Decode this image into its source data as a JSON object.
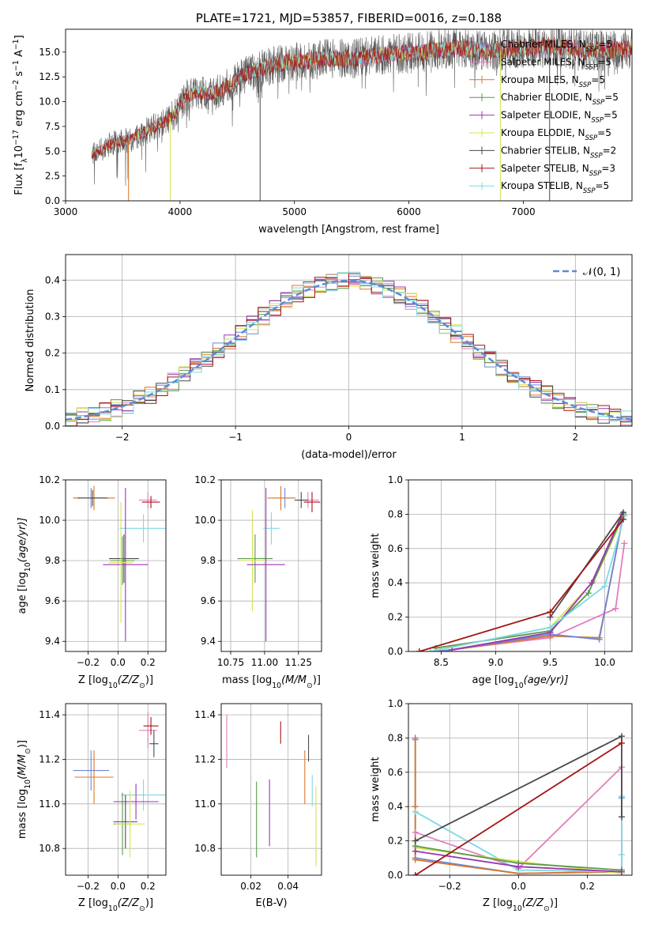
{
  "chart_data": [
    {
      "id": "spectrum",
      "type": "line",
      "title": "PLATE=1721, MJD=53857, FIBERID=0016, z=0.188",
      "xlabel": "wavelength [Angstrom, rest frame]",
      "ylabel_parts": [
        "Flux [f",
        "λ",
        "10",
        "−17",
        " erg cm",
        "−2",
        " s",
        "−1",
        " A",
        "−1",
        "]"
      ],
      "xlim": [
        3000,
        7950
      ],
      "ylim": [
        0,
        17.3
      ],
      "xticks": [
        3000,
        4000,
        5000,
        6000,
        7000
      ],
      "yticks": [
        0.0,
        2.5,
        5.0,
        7.5,
        10.0,
        12.5,
        15.0
      ],
      "grid": false,
      "legend_position": "right",
      "data_range_x": [
        3230,
        7950
      ],
      "legend": [
        {
          "main": "Chabrier MILES, N",
          "sub": "SSP",
          "tail": "=5",
          "color": "#6f86d6"
        },
        {
          "main": "Salpeter MILES, N",
          "sub": "SSP",
          "tail": "=5",
          "color": "#e17fbd"
        },
        {
          "main": "Kroupa MILES, N",
          "sub": "SSP",
          "tail": "=5",
          "color": "#d9772a"
        },
        {
          "main": "Chabrier ELODIE, N",
          "sub": "SSP",
          "tail": "=5",
          "color": "#5a9a4a"
        },
        {
          "main": "Salpeter ELODIE, N",
          "sub": "SSP",
          "tail": "=5",
          "color": "#9b34b5"
        },
        {
          "main": "Kroupa ELODIE, N",
          "sub": "SSP",
          "tail": "=5",
          "color": "#d7e354"
        },
        {
          "main": "Chabrier STELIB, N",
          "sub": "SSP",
          "tail": "=2",
          "color": "#4a4a4a"
        },
        {
          "main": "Salpeter STELIB, N",
          "sub": "SSP",
          "tail": "=3",
          "color": "#a31515"
        },
        {
          "main": "Kroupa STELIB, N",
          "sub": "SSP",
          "tail": "=5",
          "color": "#7fd9e3"
        }
      ],
      "continuum": {
        "x": [
          3230,
          3400,
          3550,
          3700,
          3850,
          3950,
          4050,
          4150,
          4300,
          4450,
          4550,
          4700,
          4900,
          5100,
          5300,
          5500,
          5700,
          5900,
          6100,
          6300,
          6500,
          6700,
          6900,
          7100,
          7300,
          7500,
          7700,
          7950
        ],
        "y": [
          4.6,
          5.8,
          6.1,
          7.0,
          7.9,
          8.7,
          10.5,
          11.0,
          10.8,
          11.8,
          12.6,
          13.3,
          13.9,
          14.1,
          14.4,
          14.3,
          14.6,
          14.8,
          15.0,
          15.3,
          15.4,
          15.1,
          15.3,
          15.5,
          15.6,
          15.2,
          15.2,
          15.3
        ]
      },
      "edge_drops": [
        {
          "x": 3550,
          "color": "#d9772a"
        },
        {
          "x": 3915,
          "color": "#d7e354"
        },
        {
          "x": 4700,
          "color": "#4a4a4a"
        },
        {
          "x": 6800,
          "color": "#d7e354"
        },
        {
          "x": 7230,
          "color": "#4a4a4a"
        }
      ]
    },
    {
      "id": "residuals",
      "type": "histogram",
      "xlabel": "(data-model)/error",
      "ylabel": "Normed distribution",
      "xlim": [
        -2.5,
        2.5
      ],
      "ylim": [
        0,
        0.47
      ],
      "xticks": [
        -2,
        -1,
        0,
        1,
        2
      ],
      "yticks": [
        0.0,
        0.1,
        0.2,
        0.3,
        0.4
      ],
      "grid": true,
      "bin_width": 0.1,
      "legend_label": "𝒩(0, 1)",
      "gaussian_color": "#5b8bd9",
      "series_colors": [
        "#6f86d6",
        "#e17fbd",
        "#d9772a",
        "#5a9a4a",
        "#9b34b5",
        "#d7e354",
        "#4a4a4a",
        "#a31515",
        "#7fd9e3"
      ]
    },
    {
      "id": "age-vs-Z",
      "type": "scatter",
      "xlabel_parts": [
        "Z [log",
        "10",
        "(Z/Z",
        "⊙",
        ")]"
      ],
      "ylabel_parts": [
        "age  [log",
        "10",
        "(age/yr)]"
      ],
      "xlim": [
        -0.35,
        0.32
      ],
      "ylim": [
        9.35,
        10.2
      ],
      "xticks": [
        -0.2,
        0.0,
        0.2
      ],
      "yticks": [
        9.4,
        9.6,
        9.8,
        10.0,
        10.2
      ],
      "grid": true,
      "points": [
        {
          "color": "#6f86d6",
          "x": -0.18,
          "xerr": 0.12,
          "y": 10.11,
          "yerr": 0.05
        },
        {
          "color": "#d9772a",
          "x": -0.16,
          "xerr": 0.14,
          "y": 10.11,
          "yerr": 0.06
        },
        {
          "color": "#4a4a4a",
          "x": -0.17,
          "xerr": 0.1,
          "y": 10.11,
          "yerr": 0.04
        },
        {
          "color": "#e17fbd",
          "x": 0.2,
          "xerr": 0.06,
          "y": 10.1,
          "yerr": 0.04
        },
        {
          "color": "#a31515",
          "x": 0.22,
          "xerr": 0.06,
          "y": 10.09,
          "yerr": 0.03
        },
        {
          "color": "#7fd9e3",
          "x": 0.17,
          "xerr": 0.16,
          "y": 9.96,
          "yerr": 0.07
        },
        {
          "color": "#4a4a4a",
          "x": 0.04,
          "xerr": 0.1,
          "y": 9.81,
          "yerr": 0.12
        },
        {
          "color": "#5a9a4a",
          "x": 0.03,
          "xerr": 0.08,
          "y": 9.8,
          "yerr": 0.12
        },
        {
          "color": "#9b34b5",
          "x": 0.05,
          "xerr": 0.15,
          "y": 9.78,
          "yerr": 0.38
        },
        {
          "color": "#d7e354",
          "x": 0.02,
          "xerr": 0.08,
          "y": 9.79,
          "yerr": 0.3
        }
      ]
    },
    {
      "id": "age-vs-mass",
      "type": "scatter",
      "xlabel_parts": [
        "mass [log",
        "10",
        "(M/M",
        "⊙",
        ")]"
      ],
      "ylabel": "",
      "xlim": [
        10.68,
        11.42
      ],
      "ylim": [
        9.35,
        10.2
      ],
      "xticks": [
        10.75,
        11.0,
        11.25
      ],
      "yticks": [
        9.4,
        9.6,
        9.8,
        10.0,
        10.2
      ],
      "grid": true,
      "points": [
        {
          "color": "#6f86d6",
          "x": 11.15,
          "xerr": 0.08,
          "y": 10.11,
          "yerr": 0.05
        },
        {
          "color": "#d9772a",
          "x": 11.12,
          "xerr": 0.1,
          "y": 10.11,
          "yerr": 0.06
        },
        {
          "color": "#e17fbd",
          "x": 11.32,
          "xerr": 0.08,
          "y": 10.1,
          "yerr": 0.04
        },
        {
          "color": "#a31515",
          "x": 11.35,
          "xerr": 0.06,
          "y": 10.09,
          "yerr": 0.05
        },
        {
          "color": "#4a4a4a",
          "x": 11.27,
          "xerr": 0.05,
          "y": 10.1,
          "yerr": 0.04
        },
        {
          "color": "#7fd9e3",
          "x": 11.05,
          "xerr": 0.06,
          "y": 9.96,
          "yerr": 0.08
        },
        {
          "color": "#5a9a4a",
          "x": 10.93,
          "xerr": 0.13,
          "y": 9.81,
          "yerr": 0.12
        },
        {
          "color": "#d7e354",
          "x": 10.91,
          "xerr": 0.1,
          "y": 9.8,
          "yerr": 0.25
        },
        {
          "color": "#9b34b5",
          "x": 11.01,
          "xerr": 0.14,
          "y": 9.78,
          "yerr": 0.38
        }
      ]
    },
    {
      "id": "mass-weight-vs-age",
      "type": "line",
      "xlabel_parts": [
        "age  [log",
        "10",
        "(age/yr)]"
      ],
      "ylabel": "mass weight",
      "xlim": [
        8.2,
        10.25
      ],
      "ylim": [
        0,
        1.0
      ],
      "xticks": [
        8.5,
        9.0,
        9.5,
        10.0
      ],
      "yticks": [
        0.0,
        0.2,
        0.4,
        0.6,
        0.8,
        1.0
      ],
      "grid": true,
      "series": [
        {
          "color": "#e17fbd",
          "x": [
            8.45,
            9.5,
            10.1,
            10.18
          ],
          "y": [
            0.0,
            0.08,
            0.25,
            0.63
          ]
        },
        {
          "color": "#d9772a",
          "x": [
            8.5,
            9.5,
            9.95,
            10.17
          ],
          "y": [
            0.0,
            0.09,
            0.08,
            0.79
          ]
        },
        {
          "color": "#6f86d6",
          "x": [
            8.5,
            9.5,
            9.95,
            10.17
          ],
          "y": [
            0.0,
            0.1,
            0.07,
            0.8
          ]
        },
        {
          "color": "#d7e354",
          "x": [
            8.4,
            9.5,
            9.9,
            10.18
          ],
          "y": [
            0.0,
            0.14,
            0.41,
            0.8
          ]
        },
        {
          "color": "#5a9a4a",
          "x": [
            8.45,
            9.5,
            9.85,
            10.17
          ],
          "y": [
            0.02,
            0.12,
            0.34,
            0.8
          ]
        },
        {
          "color": "#9b34b5",
          "x": [
            8.6,
            9.5,
            9.88,
            10.16
          ],
          "y": [
            0.01,
            0.11,
            0.4,
            0.8
          ]
        },
        {
          "color": "#7fd9e3",
          "x": [
            8.4,
            9.5,
            10.0,
            10.18
          ],
          "y": [
            0.0,
            0.14,
            0.38,
            0.79
          ]
        },
        {
          "color": "#4a4a4a",
          "x": [
            9.5,
            10.17
          ],
          "y": [
            0.2,
            0.81
          ]
        },
        {
          "color": "#a31515",
          "x": [
            8.3,
            9.5,
            10.17
          ],
          "y": [
            0.0,
            0.23,
            0.77
          ]
        }
      ]
    },
    {
      "id": "mass-vs-Z",
      "type": "scatter",
      "xlabel_parts": [
        "Z [log",
        "10",
        "(Z/Z",
        "⊙",
        ")]"
      ],
      "ylabel_parts": [
        "mass [log",
        "10",
        "(M/M",
        "⊙",
        ")]"
      ],
      "xlim": [
        -0.35,
        0.32
      ],
      "ylim": [
        10.68,
        11.45
      ],
      "xticks": [
        -0.2,
        0.0,
        0.2
      ],
      "yticks": [
        10.8,
        11.0,
        11.2,
        11.4
      ],
      "grid": true,
      "points": [
        {
          "color": "#6f86d6",
          "x": -0.18,
          "xerr": 0.12,
          "y": 11.15,
          "yerr": 0.09
        },
        {
          "color": "#d9772a",
          "x": -0.16,
          "xerr": 0.13,
          "y": 11.12,
          "yerr": 0.12
        },
        {
          "color": "#e17fbd",
          "x": 0.2,
          "xerr": 0.06,
          "y": 11.33,
          "yerr": 0.08
        },
        {
          "color": "#a31515",
          "x": 0.22,
          "xerr": 0.05,
          "y": 11.35,
          "yerr": 0.04
        },
        {
          "color": "#4a4a4a",
          "x": 0.24,
          "xerr": 0.03,
          "y": 11.27,
          "yerr": 0.06
        },
        {
          "color": "#7fd9e3",
          "x": 0.17,
          "xerr": 0.15,
          "y": 11.04,
          "yerr": 0.07
        },
        {
          "color": "#9b34b5",
          "x": 0.12,
          "xerr": 0.15,
          "y": 11.01,
          "yerr": 0.08
        },
        {
          "color": "#4a4a4a",
          "x": 0.05,
          "xerr": 0.08,
          "y": 10.92,
          "yerr": 0.12
        },
        {
          "color": "#5a9a4a",
          "x": 0.03,
          "xerr": 0.06,
          "y": 10.91,
          "yerr": 0.14
        },
        {
          "color": "#d7e354",
          "x": 0.08,
          "xerr": 0.1,
          "y": 10.91,
          "yerr": 0.15
        }
      ]
    },
    {
      "id": "mass-vs-ebv",
      "type": "scatter",
      "xlabel": "E(B-V)",
      "ylabel": "",
      "xlim": [
        0.004,
        0.058
      ],
      "ylim": [
        10.68,
        11.45
      ],
      "xticks": [
        0.02,
        0.04
      ],
      "yticks": [
        10.8,
        11.0,
        11.2,
        11.4
      ],
      "grid": true,
      "points": [
        {
          "color": "#e17fbd",
          "x": 0.007,
          "xerr": 0,
          "y": 11.28,
          "yerr": 0.12
        },
        {
          "color": "#5a9a4a",
          "x": 0.023,
          "xerr": 0,
          "y": 10.93,
          "yerr": 0.17
        },
        {
          "color": "#9b34b5",
          "x": 0.03,
          "xerr": 0,
          "y": 10.96,
          "yerr": 0.15
        },
        {
          "color": "#a31515",
          "x": 0.036,
          "xerr": 0,
          "y": 11.32,
          "yerr": 0.05
        },
        {
          "color": "#d9772a",
          "x": 0.049,
          "xerr": 0,
          "y": 11.12,
          "yerr": 0.12
        },
        {
          "color": "#4a4a4a",
          "x": 0.051,
          "xerr": 0,
          "y": 11.25,
          "yerr": 0.06
        },
        {
          "color": "#7fd9e3",
          "x": 0.053,
          "xerr": 0,
          "y": 11.06,
          "yerr": 0.07
        },
        {
          "color": "#d7e354",
          "x": 0.055,
          "xerr": 0,
          "y": 10.9,
          "yerr": 0.18
        }
      ]
    },
    {
      "id": "mass-weight-vs-Z",
      "type": "line",
      "xlabel_parts": [
        "Z [log",
        "10",
        "(Z/Z",
        "⊙",
        ")]"
      ],
      "ylabel": "mass weight",
      "xlim": [
        -0.32,
        0.33
      ],
      "ylim": [
        0,
        1.0
      ],
      "xticks": [
        -0.2,
        0.0,
        0.2
      ],
      "yticks": [
        0.0,
        0.2,
        0.4,
        0.6,
        0.8,
        1.0
      ],
      "grid": true,
      "series": [
        {
          "color": "#6f86d6",
          "x": [
            -0.3,
            -0.3,
            -0.3,
            0.0,
            0.3,
            0.3
          ],
          "y": [
            0.8,
            0.4,
            0.1,
            0.01,
            0.02,
            0.45
          ]
        },
        {
          "color": "#d9772a",
          "x": [
            -0.3,
            -0.3,
            -0.3,
            0.0,
            0.3
          ],
          "y": [
            0.79,
            0.4,
            0.09,
            0.01,
            0.02
          ]
        },
        {
          "color": "#e17fbd",
          "x": [
            -0.3,
            0.0,
            0.3,
            0.3
          ],
          "y": [
            0.25,
            0.04,
            0.63,
            0.02
          ]
        },
        {
          "color": "#7fd9e3",
          "x": [
            -0.3,
            0.0,
            0.3,
            0.3,
            0.3
          ],
          "y": [
            0.37,
            0.03,
            0.02,
            0.12,
            0.46
          ]
        },
        {
          "color": "#d7e354",
          "x": [
            -0.3,
            0.0,
            0.3
          ],
          "y": [
            0.16,
            0.08,
            0.01
          ]
        },
        {
          "color": "#5a9a4a",
          "x": [
            -0.3,
            0.0,
            0.3
          ],
          "y": [
            0.17,
            0.07,
            0.03
          ]
        },
        {
          "color": "#9b34b5",
          "x": [
            -0.3,
            0.0,
            0.3
          ],
          "y": [
            0.14,
            0.05,
            0.02
          ]
        },
        {
          "color": "#4a4a4a",
          "x": [
            -0.3,
            0.3,
            0.3
          ],
          "y": [
            0.2,
            0.81,
            0.34
          ]
        },
        {
          "color": "#a31515",
          "x": [
            -0.3,
            0.3
          ],
          "y": [
            0.0,
            0.77
          ]
        }
      ]
    }
  ]
}
